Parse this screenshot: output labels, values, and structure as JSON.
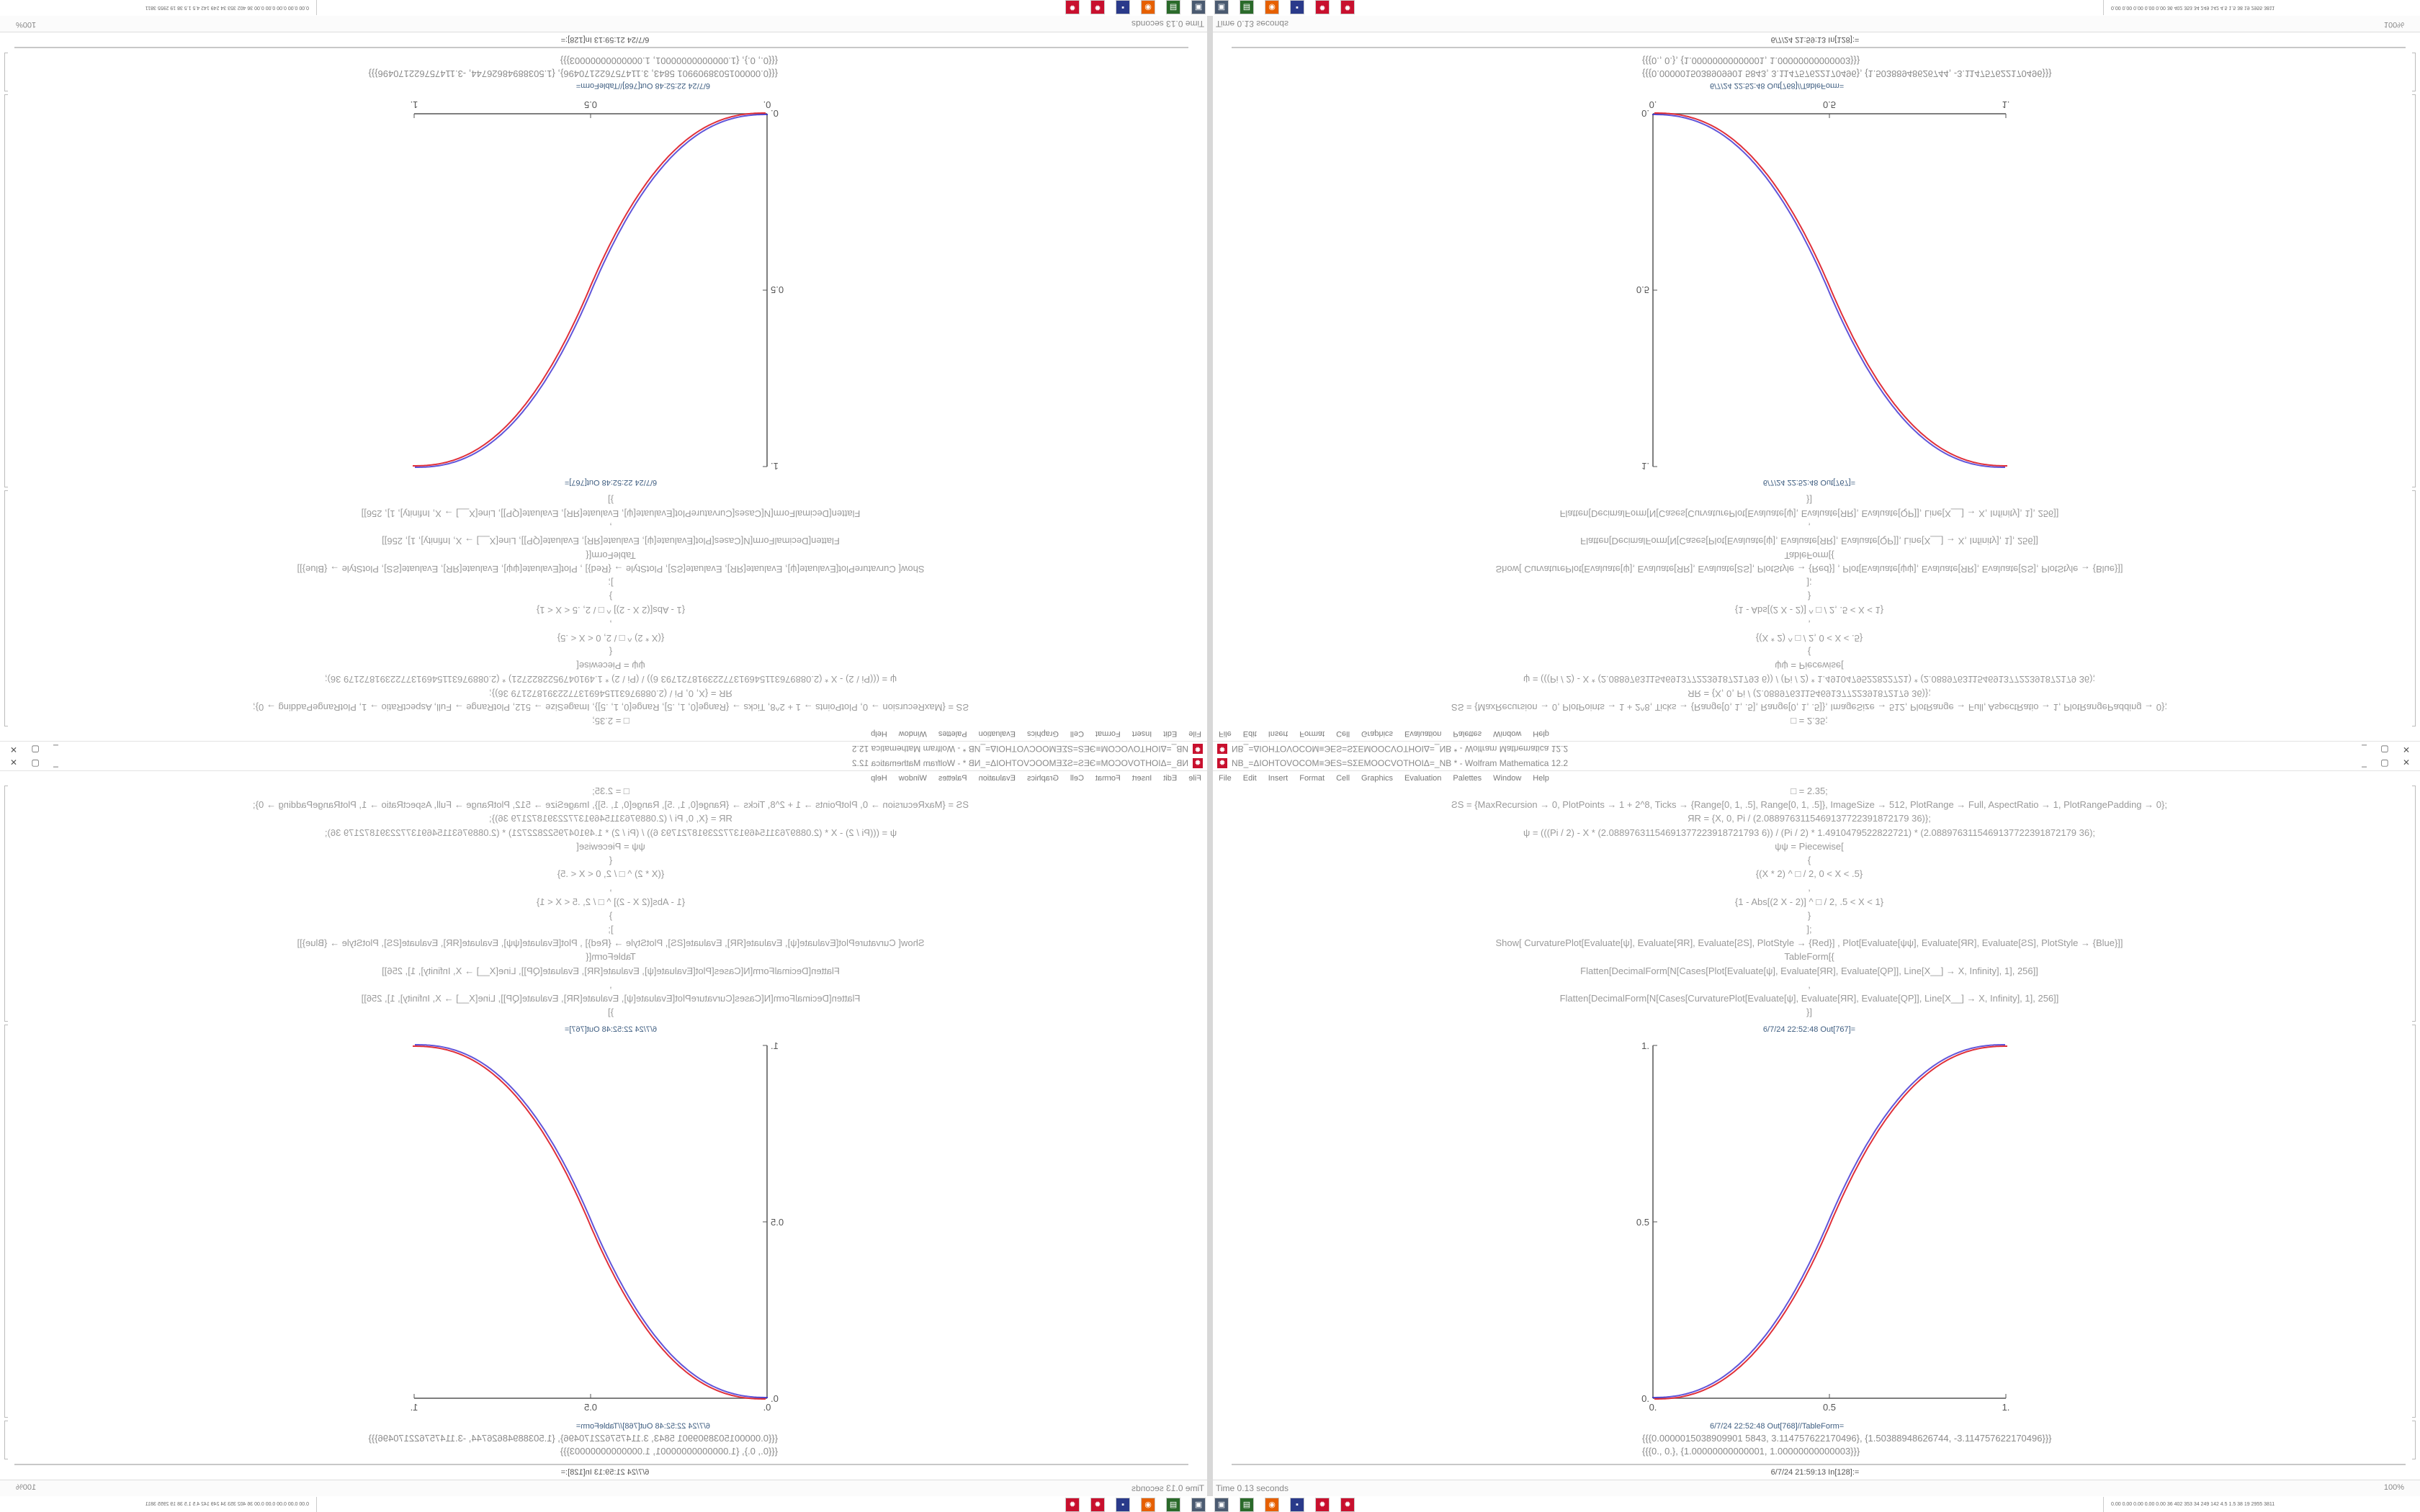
{
  "window": {
    "title": "NB_=ΔIOHTOVOCOM≡ЭЕS=ЅΣEMOOCVOTHOIΔ=_NB * - Wolfram Mathematica 12.2",
    "controls": "_ ▢ ✕"
  },
  "menu": [
    "File",
    "Edit",
    "Insert",
    "Format",
    "Cell",
    "Graphics",
    "Evaluation",
    "Palettes",
    "Window",
    "Help"
  ],
  "code": [
    "□ = 2.35;",
    "ƧS = {MaxRecursion → 0, PlotPoints → 1 + 2^8, Ticks → {Range[0, 1, .5], Range[0, 1, .5]}, ImageSize → 512, PlotRange → Full, AspectRatio → 1, PlotRangePadding → 0};",
    "ЯR = {X, 0, Pi / (2.0889763115469137722391872179 36)};",
    "ψ = (((Pi / 2) - X * (2.08897631154691377223918721793 6)) / (Pi / 2) * 1.4910479522822721) * (2.0889763115469137722391872179 36);",
    "ψψ = Piecewise[",
    "{",
    "{(X * 2) ^ □ / 2, 0 < X < .5}",
    ",",
    "{1 - Abs[(2 X - 2)] ^ □ / 2, .5 < X < 1}",
    "}",
    "];",
    "Show[   CurvaturePlot[Evaluate[ψ], Evaluate[ЯR], Evaluate[ƧS], PlotStyle → {Red}]   ,   Plot[Evaluate[ψψ], Evaluate[ЯR], Evaluate[ƧS], PlotStyle → {Blue}]]",
    "TableForm[{",
    "Flatten[DecimalForm[N[Cases[Plot[Evaluate[ψ], Evaluate[ЯR], Evaluate[QP]], Line[X__] → X, Infinity], 1], 256]]",
    ",",
    "Flatten[DecimalForm[N[Cases[CurvaturePlot[Evaluate[ψ], Evaluate[ЯR], Evaluate[QP]], Line[X__] → X, Infinity], 1], 256]]",
    "}]"
  ],
  "output_plot_label": "6/7/24 22:52:48 Out[767]=",
  "plot": {
    "x_ticks": [
      "0.",
      "0.5",
      "1."
    ],
    "y_ticks": [
      "0.",
      "0.5",
      "1."
    ],
    "exponent": 2.35,
    "colors": {
      "curvature": "#e0303a",
      "plot": "#3a2ad0",
      "overlap": "#8a2a9a"
    }
  },
  "output_table_label": "6/7/24 22:52:48 Out[768]//TableForm=",
  "results": [
    "{{{0.0000015038909901 5843, 3.114757622170496}, {1.50388948626744, -3.114757622170496}}}",
    "{{{0., 0.}, {1.00000000000001, 1.00000000000003}}}"
  ],
  "input_label": "6/7/24 21:59:13 In[128]:=",
  "status": {
    "time": "Time 0.13 seconds",
    "zoom": "100%"
  },
  "taskbar": {
    "icons": [
      "monitor-icon",
      "terminal-icon",
      "firefox-icon",
      "save-disk-icon",
      "mathematica-icon",
      "mathematica-icon"
    ],
    "tray_text": "0.00 0.00 0.00 0.00 0.00  36  402  353  34  249  142  4.5  1.5  38  19  2955 3811"
  }
}
